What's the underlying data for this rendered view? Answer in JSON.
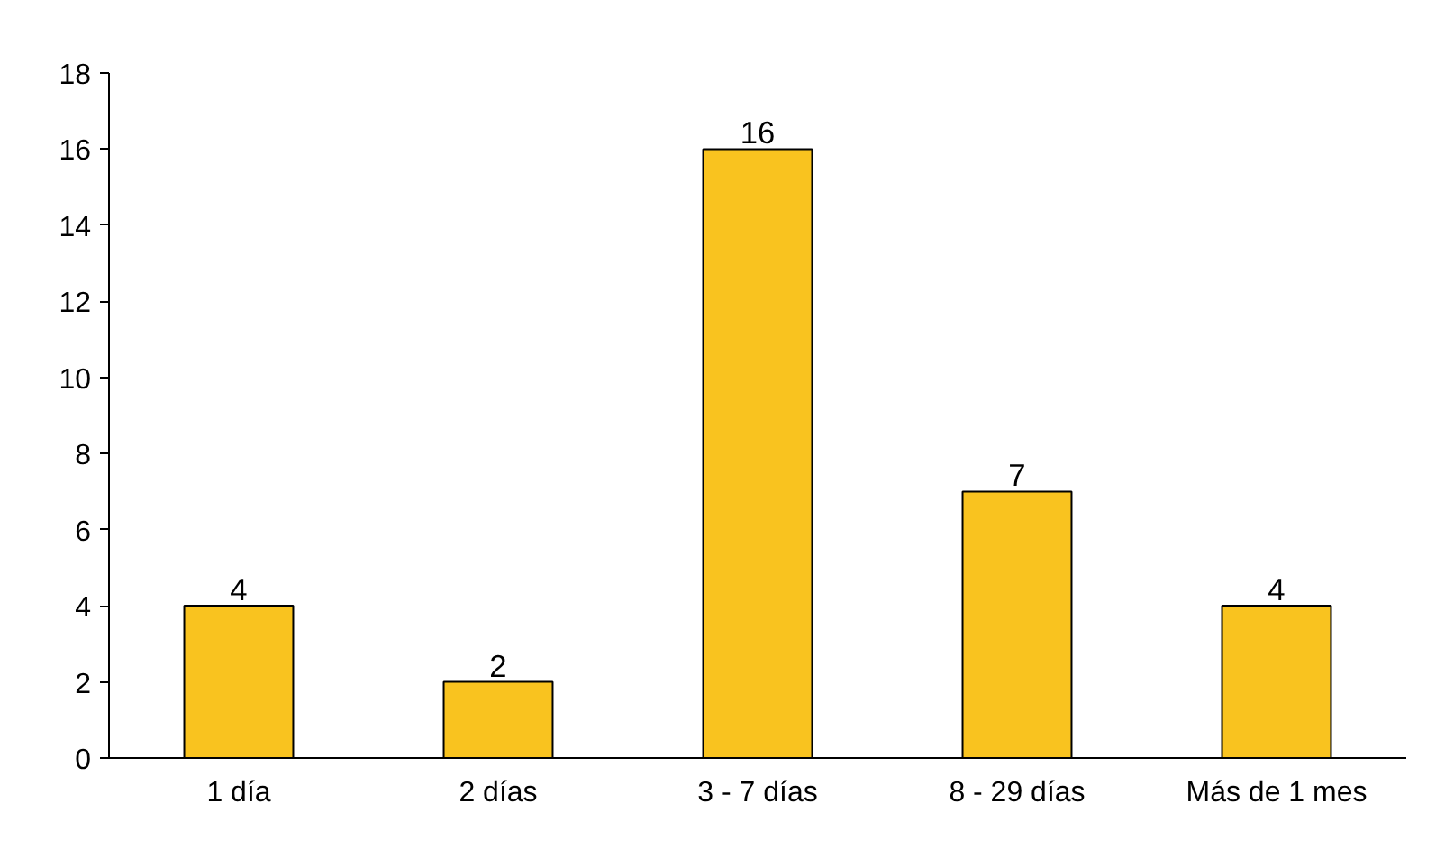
{
  "chart_data": {
    "type": "bar",
    "categories": [
      "1 día",
      "2 días",
      "3 - 7 días",
      "8 - 29 días",
      "Más de 1 mes"
    ],
    "values": [
      4,
      2,
      16,
      7,
      4
    ],
    "color": "#f9c31f",
    "ylim": [
      0,
      18
    ],
    "yticks": [
      0,
      2,
      4,
      6,
      8,
      10,
      12,
      14,
      16,
      18
    ],
    "data_labels": true,
    "grid": false
  }
}
